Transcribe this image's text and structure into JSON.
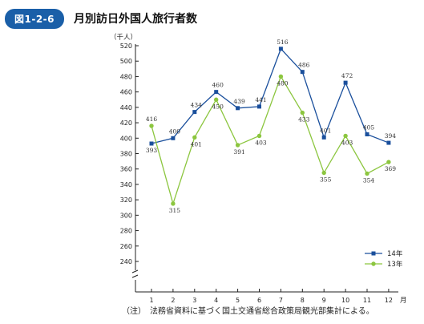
{
  "header": {
    "figure_no": "図1-2-6",
    "title": "月別訪日外国人旅行者数"
  },
  "note": "（注）　法務省資料に基づく国土交通省総合政策局観光部集計による。",
  "colors": {
    "badge": "#1a5fa8",
    "series_14": "#1a4f9c",
    "series_13": "#8cc63f",
    "axis": "#222222"
  },
  "chart_data": {
    "type": "line",
    "y_unit_label": "（千人）",
    "x_unit_label": "月",
    "x": [
      1,
      2,
      3,
      4,
      5,
      6,
      7,
      8,
      9,
      10,
      11,
      12
    ],
    "y_ticks": [
      240,
      260,
      280,
      300,
      320,
      340,
      360,
      380,
      400,
      420,
      440,
      460,
      480,
      500,
      520
    ],
    "ylim": [
      240,
      520
    ],
    "axis_break": true,
    "grid": false,
    "legend_position": "bottom-right",
    "series": [
      {
        "name": "14年",
        "marker": "square",
        "color": "#1a4f9c",
        "values": [
          393,
          400,
          434,
          460,
          439,
          441,
          516,
          486,
          401,
          472,
          405,
          394
        ]
      },
      {
        "name": "13年",
        "marker": "circle",
        "color": "#8cc63f",
        "values": [
          416,
          315,
          401,
          450,
          391,
          403,
          480,
          433,
          355,
          403,
          354,
          369
        ]
      }
    ]
  }
}
